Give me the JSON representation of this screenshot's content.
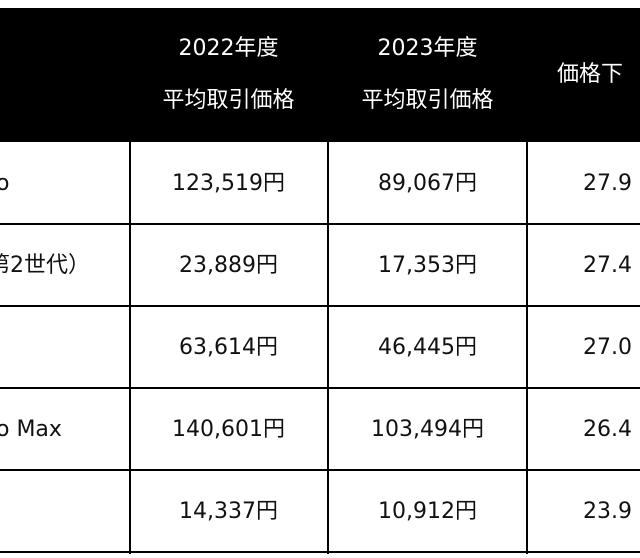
{
  "table": {
    "header": [
      null,
      [
        "2022年度",
        "平均取引価格"
      ],
      [
        "2023年度",
        "平均取引価格"
      ],
      [
        "価格下"
      ]
    ],
    "rows": [
      [
        "o",
        "123,519円",
        "89,067円",
        "27.9"
      ],
      [
        "第2世代）",
        "23,889円",
        "17,353円",
        "27.4"
      ],
      [
        null,
        "63,614円",
        "46,445円",
        "27.0"
      ],
      [
        "o Max",
        "140,601円",
        "103,494円",
        "26.4"
      ],
      [
        null,
        "14,337円",
        "10,912円",
        "23.9"
      ]
    ]
  }
}
